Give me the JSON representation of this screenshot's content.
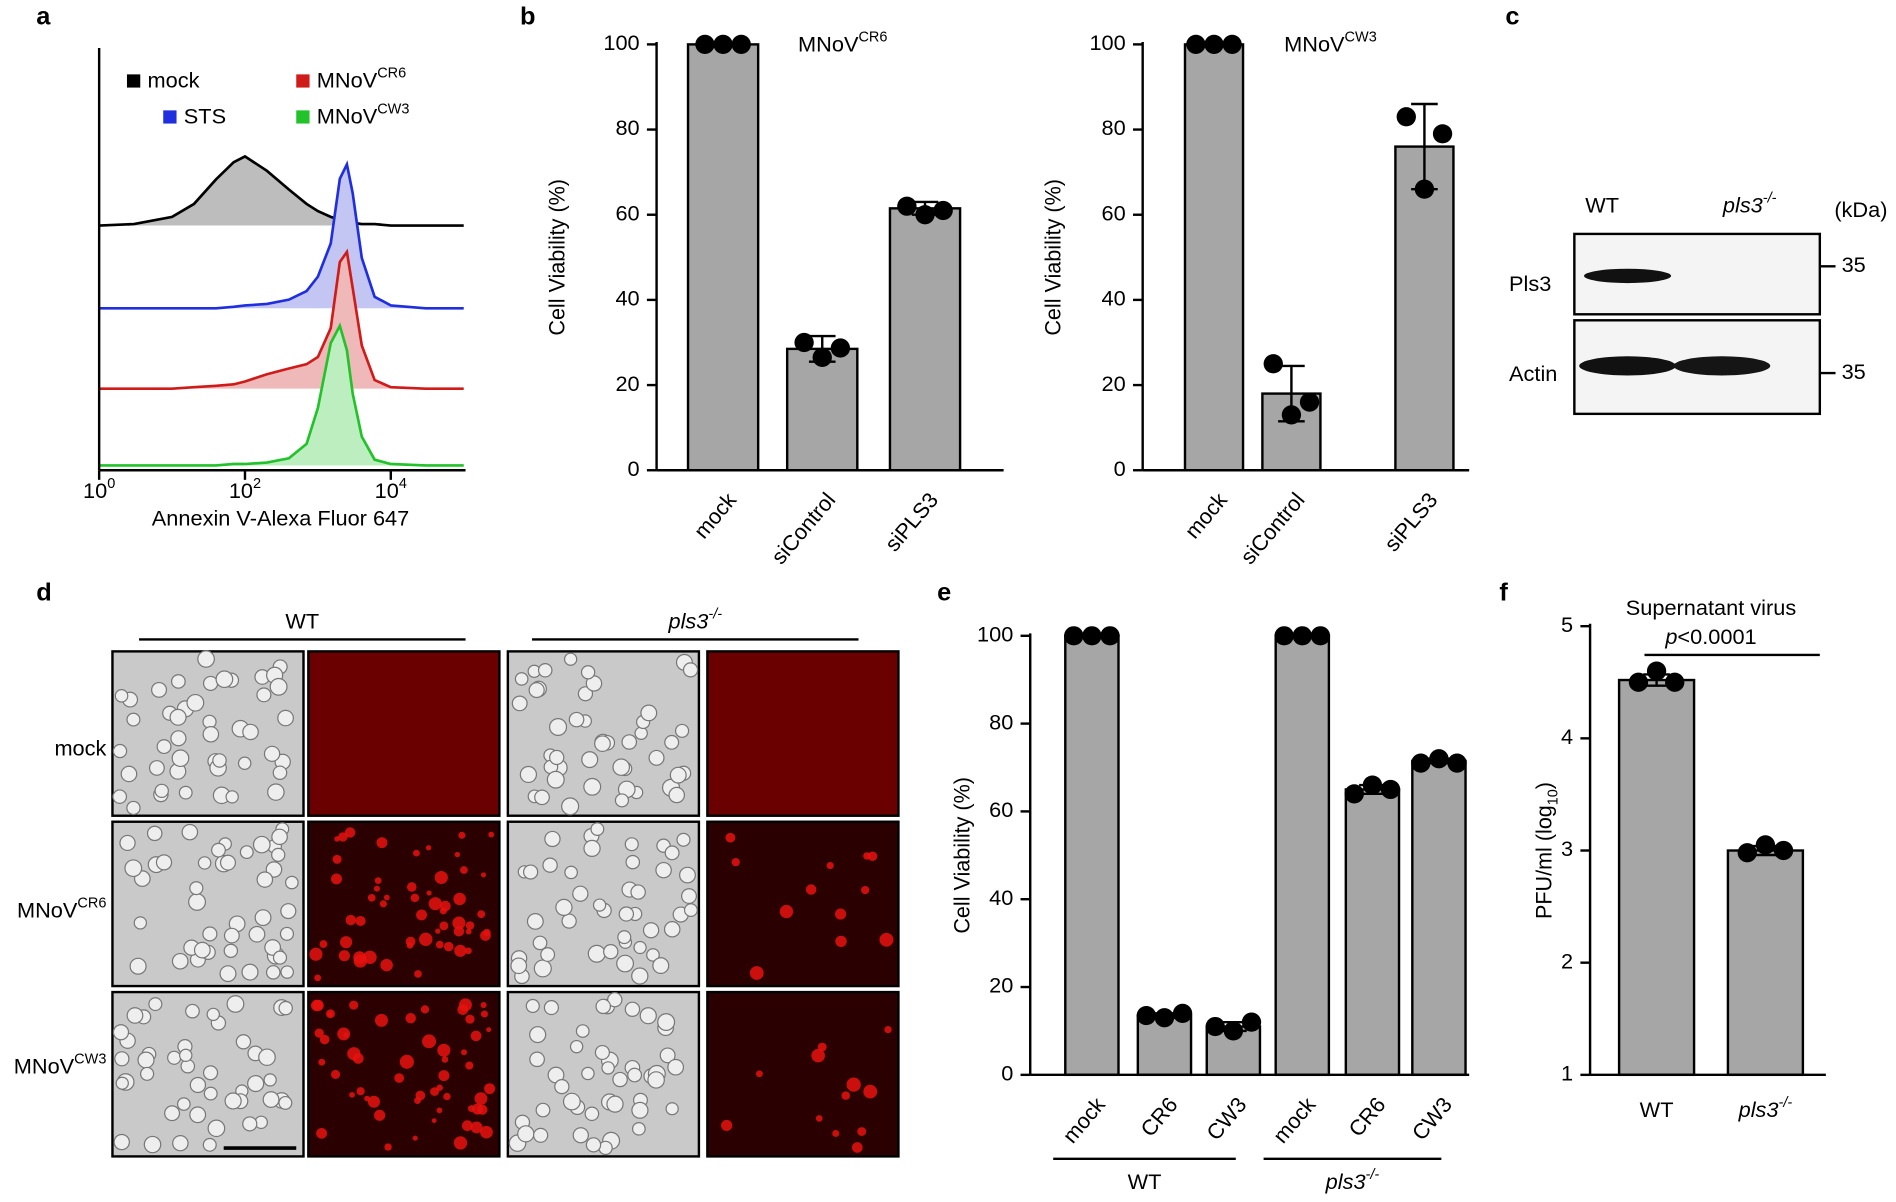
{
  "panel_labels": [
    "a",
    "b",
    "c",
    "d",
    "e",
    "f"
  ],
  "chart_data": [
    {
      "type": "ridgeline",
      "x_label": "Annexin V-Alexa Fluor 647",
      "log_x": true,
      "xlim": [
        1,
        100000
      ],
      "xticks": [
        {
          "value": 1,
          "label": "10",
          "exponent": "0"
        },
        {
          "value": 100,
          "label": "10",
          "exponent": "2"
        },
        {
          "value": 10000,
          "label": "10",
          "exponent": "4"
        }
      ],
      "x": [
        1,
        3,
        10,
        20,
        40,
        70,
        100,
        200,
        400,
        700,
        1000,
        1500,
        2000,
        2500,
        3000,
        4000,
        6000,
        10000,
        30000,
        100000
      ],
      "series": [
        {
          "name": "mock",
          "color": "#000000",
          "fill": "#bdbdbd",
          "values": [
            0,
            1,
            6,
            15,
            32,
            44,
            48,
            38,
            25,
            15,
            10,
            6,
            4,
            3,
            2,
            1,
            1,
            0,
            0,
            0
          ]
        },
        {
          "name": "STS",
          "color": "#1f2fe0",
          "fill": "#c3c6f3",
          "values": [
            0,
            0,
            0,
            0,
            0,
            1,
            2,
            3,
            6,
            12,
            22,
            45,
            90,
            100,
            80,
            35,
            8,
            2,
            0,
            0
          ]
        },
        {
          "name": "MNoV",
          "name_superscript": "CR6",
          "color": "#d01b1b",
          "fill": "#f0b9b9",
          "values": [
            0,
            0,
            0,
            1,
            2,
            3,
            5,
            10,
            14,
            17,
            22,
            42,
            88,
            95,
            70,
            30,
            6,
            1,
            0,
            0
          ]
        },
        {
          "name": "MNoV",
          "name_superscript": "CW3",
          "color": "#22c22a",
          "fill": "#bdeebf",
          "values": [
            0,
            0,
            0,
            0,
            0,
            1,
            1,
            2,
            5,
            15,
            40,
            85,
            97,
            80,
            50,
            20,
            4,
            1,
            0,
            0
          ]
        }
      ]
    },
    {
      "type": "bar",
      "annotation": "MNoV",
      "annotation_superscript": "CR6",
      "y_label": "Cell Viability (%)",
      "color": "#a6a6a6",
      "categories": [
        "mock",
        "siControl",
        "siPLS3"
      ],
      "values": [
        100,
        28.5,
        61.5
      ],
      "errors": [
        0,
        3,
        1.5
      ],
      "points": [
        [
          100,
          100,
          100
        ],
        [
          30,
          26.5,
          28.7
        ],
        [
          62,
          60,
          61
        ]
      ],
      "ylim": [
        0,
        100
      ],
      "yticks": [
        0,
        20,
        40,
        60,
        80,
        100
      ]
    },
    {
      "type": "bar",
      "annotation": "MNoV",
      "annotation_superscript": "CW3",
      "y_label": "Cell Viability (%)",
      "color": "#a6a6a6",
      "categories": [
        "mock",
        "siControl",
        "siPLS3"
      ],
      "values": [
        100,
        18,
        76
      ],
      "errors": [
        0,
        6.5,
        10
      ],
      "points": [
        [
          100,
          100,
          100
        ],
        [
          25,
          13,
          16
        ],
        [
          83,
          66,
          79
        ]
      ],
      "ylim": [
        0,
        100
      ],
      "yticks": [
        0,
        20,
        40,
        60,
        80,
        100
      ]
    },
    {
      "type": "bar",
      "y_label": "Cell Viability (%)",
      "color": "#a6a6a6",
      "categories": [
        "mock",
        "CR6",
        "CW3",
        "mock",
        "CR6",
        "CW3"
      ],
      "values": [
        100,
        13.5,
        11,
        100,
        65,
        71.5
      ],
      "errors": [
        0,
        0.5,
        1,
        0,
        1,
        0.5
      ],
      "points": [
        [
          100,
          100,
          100
        ],
        [
          13.5,
          13,
          14
        ],
        [
          11,
          10,
          12
        ],
        [
          100,
          100,
          100
        ],
        [
          64,
          66,
          65
        ],
        [
          71,
          72,
          71
        ]
      ],
      "groups": [
        {
          "label": "WT"
        },
        {
          "label": "pls3",
          "superscript": "-/-"
        }
      ],
      "ylim": [
        0,
        100
      ],
      "yticks": [
        0,
        20,
        40,
        60,
        80,
        100
      ]
    },
    {
      "type": "bar",
      "title": "Supernatant virus",
      "annotation_italic": "p",
      "annotation": "<0.0001",
      "y_label": "PFU/ml (log",
      "y_label_subscript": "10",
      "y_label_end": ")",
      "color": "#a6a6a6",
      "categories": [
        "WT",
        "pls3"
      ],
      "category_superscripts": [
        null,
        "-/-"
      ],
      "values": [
        4.52,
        3.0
      ],
      "errors": [
        0.05,
        0.04
      ],
      "points": [
        [
          4.5,
          4.6,
          4.5
        ],
        [
          2.98,
          3.05,
          3.0
        ]
      ],
      "ylim": [
        1,
        5
      ],
      "yticks": [
        1,
        2,
        3,
        4,
        5
      ]
    }
  ],
  "blot": {
    "columns": [
      {
        "label": "WT"
      },
      {
        "label": "pls3",
        "superscript": "-/-"
      }
    ],
    "unit": "(kDa)",
    "rows": [
      {
        "label": "Pls3",
        "marker": "35"
      },
      {
        "label": "Actin",
        "marker": "35"
      }
    ]
  },
  "microscopy": {
    "columns": [
      {
        "label": "WT"
      },
      {
        "label": "pls3",
        "superscript": "-/-"
      }
    ],
    "rows": [
      {
        "label": "mock"
      },
      {
        "label": "MNoV",
        "superscript": "CR6"
      },
      {
        "label": "MNoV",
        "superscript": "CW3"
      }
    ]
  }
}
